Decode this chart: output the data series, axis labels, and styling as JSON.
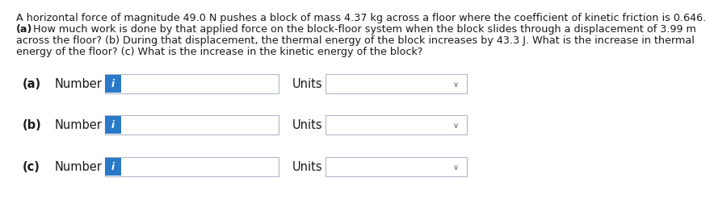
{
  "background_color": "#ffffff",
  "text_color": "#1a1a1a",
  "paragraph_lines": [
    "A horizontal force of magnitude 49.0 N pushes a block of mass 4.37 kg across a floor where the coefficient of kinetic friction is 0.646.",
    "(a) How much work is done by that applied force on the block-floor system when the block slides through a displacement of 3.99 m",
    "across the floor? (b) During that displacement, the thermal energy of the block increases by 43.3 J. What is the increase in thermal",
    "energy of the floor? (c) What is the increase in the kinetic energy of the block?"
  ],
  "bold_starts": [
    "(a)",
    "(b)",
    "(c)"
  ],
  "rows": [
    {
      "label": "(a)"
    },
    {
      "label": "(b)"
    },
    {
      "label": "(c)"
    }
  ],
  "tag_color": "#2979c8",
  "tag_text": "i",
  "tag_text_color": "#ffffff",
  "number_label": "Number",
  "units_label": "Units",
  "input_box_border": "#b0b8c8",
  "units_box_border": "#b0b8c8",
  "input_box_fill": "#ffffff",
  "units_box_fill": "#ffffff",
  "dropdown_arrow": "∨",
  "paragraph_fontsize": 9.2,
  "label_fontsize": 10.5,
  "tag_fontsize": 8.5
}
